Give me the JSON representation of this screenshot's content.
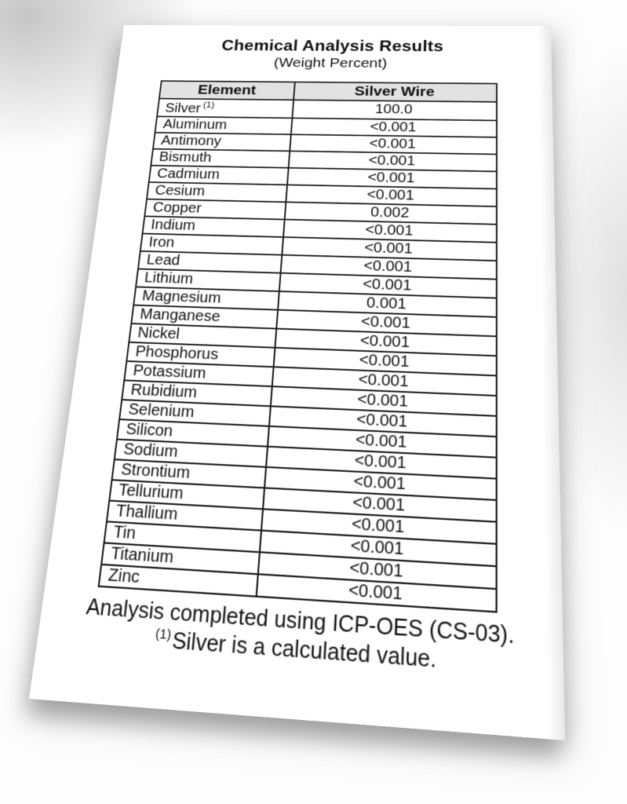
{
  "document": {
    "title": "Chemical Analysis Results",
    "subtitle": "(Weight Percent)",
    "table": {
      "headers": [
        "Element",
        "Silver Wire"
      ],
      "rows": [
        {
          "element": "Silver",
          "note": "(1)",
          "value": "100.0"
        },
        {
          "element": "Aluminum",
          "value": "<0.001"
        },
        {
          "element": "Antimony",
          "value": "<0.001"
        },
        {
          "element": "Bismuth",
          "value": "<0.001"
        },
        {
          "element": "Cadmium",
          "value": "<0.001"
        },
        {
          "element": "Cesium",
          "value": "<0.001"
        },
        {
          "element": "Copper",
          "value": "0.002"
        },
        {
          "element": "Indium",
          "value": "<0.001"
        },
        {
          "element": "Iron",
          "value": "<0.001"
        },
        {
          "element": "Lead",
          "value": "<0.001"
        },
        {
          "element": "Lithium",
          "value": "<0.001"
        },
        {
          "element": "Magnesium",
          "value": "0.001"
        },
        {
          "element": "Manganese",
          "value": "<0.001"
        },
        {
          "element": "Nickel",
          "value": "<0.001"
        },
        {
          "element": "Phosphorus",
          "value": "<0.001"
        },
        {
          "element": "Potassium",
          "value": "<0.001"
        },
        {
          "element": "Rubidium",
          "value": "<0.001"
        },
        {
          "element": "Selenium",
          "value": "<0.001"
        },
        {
          "element": "Silicon",
          "value": "<0.001"
        },
        {
          "element": "Sodium",
          "value": "<0.001"
        },
        {
          "element": "Strontium",
          "value": "<0.001"
        },
        {
          "element": "Tellurium",
          "value": "<0.001"
        },
        {
          "element": "Thallium",
          "value": "<0.001"
        },
        {
          "element": "Tin",
          "value": "<0.001"
        },
        {
          "element": "Titanium",
          "value": "<0.001"
        },
        {
          "element": "Zinc",
          "value": "<0.001"
        }
      ]
    },
    "notes": {
      "method": "Analysis completed using ICP-OES (CS-03).",
      "footnote_marker": "(1)",
      "footnote_text": "Silver is a calculated value."
    }
  },
  "style": {
    "paper_bg": "#ffffff",
    "header_bg": "#e2e2e2",
    "border_color": "#1c1c1c",
    "text_color": "#111111"
  }
}
